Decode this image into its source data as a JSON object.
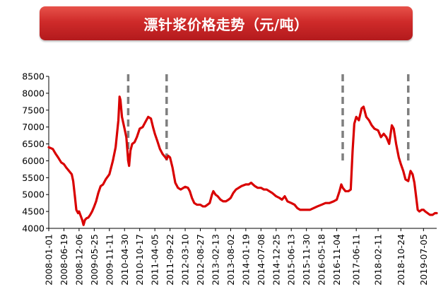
{
  "chart_data": {
    "type": "line",
    "title": "漂针浆价格走势（元/吨）",
    "xlabel": "",
    "ylabel": "",
    "ylim": [
      4000,
      8500
    ],
    "yticks": [
      4000,
      4500,
      5000,
      5500,
      6000,
      6500,
      7000,
      7500,
      8000,
      8500
    ],
    "xlim": [
      "2008-01-01",
      "2019-11-30"
    ],
    "xtick_labels": [
      "2008-01-01",
      "2008-06-19",
      "2008-12-06",
      "2009-05-25",
      "2009-11-11",
      "2010-04-30",
      "2010-10-17",
      "2011-04-05",
      "2011-09-22",
      "2012-03-10",
      "2012-08-27",
      "2013-02-13",
      "2013-08-02",
      "2014-01-19",
      "2014-07-08",
      "2014-12-25",
      "2015-06-13",
      "2015-11-30",
      "2016-05-18",
      "2016-11-04",
      "2017-06-11",
      "2018-02-11",
      "2018-10-24",
      "2019-07-05"
    ],
    "grid": false,
    "legend": "none",
    "line_color": "#d90000",
    "marker_color": "#7f7f7f",
    "vertical_markers": [
      "2010-06-10",
      "2011-08-15",
      "2017-01-10",
      "2019-01-15"
    ],
    "series": [
      {
        "points": [
          [
            "2008-01-01",
            6400
          ],
          [
            "2008-02-15",
            6350
          ],
          [
            "2008-03-20",
            6200
          ],
          [
            "2008-04-15",
            6100
          ],
          [
            "2008-05-20",
            5950
          ],
          [
            "2008-06-19",
            5900
          ],
          [
            "2008-07-15",
            5800
          ],
          [
            "2008-08-15",
            5700
          ],
          [
            "2008-09-15",
            5600
          ],
          [
            "2008-10-01",
            5400
          ],
          [
            "2008-10-20",
            4950
          ],
          [
            "2008-11-05",
            4550
          ],
          [
            "2008-11-25",
            4450
          ],
          [
            "2008-12-06",
            4500
          ],
          [
            "2008-12-20",
            4400
          ],
          [
            "2009-01-10",
            4250
          ],
          [
            "2009-01-25",
            4100
          ],
          [
            "2009-02-10",
            4250
          ],
          [
            "2009-03-01",
            4300
          ],
          [
            "2009-03-20",
            4320
          ],
          [
            "2009-04-10",
            4400
          ],
          [
            "2009-05-01",
            4500
          ],
          [
            "2009-05-25",
            4650
          ],
          [
            "2009-06-15",
            4800
          ],
          [
            "2009-07-10",
            5050
          ],
          [
            "2009-08-05",
            5250
          ],
          [
            "2009-09-01",
            5300
          ],
          [
            "2009-10-01",
            5450
          ],
          [
            "2009-11-11",
            5600
          ],
          [
            "2009-12-20",
            6000
          ],
          [
            "2010-01-20",
            6400
          ],
          [
            "2010-02-20",
            7200
          ],
          [
            "2010-03-05",
            7900
          ],
          [
            "2010-03-15",
            7800
          ],
          [
            "2010-04-01",
            7300
          ],
          [
            "2010-04-30",
            6950
          ],
          [
            "2010-05-20",
            6700
          ],
          [
            "2010-06-10",
            6000
          ],
          [
            "2010-06-20",
            5850
          ],
          [
            "2010-07-05",
            6300
          ],
          [
            "2010-07-25",
            6500
          ],
          [
            "2010-08-20",
            6550
          ],
          [
            "2010-09-15",
            6700
          ],
          [
            "2010-10-17",
            6950
          ],
          [
            "2010-11-20",
            7000
          ],
          [
            "2010-12-20",
            7150
          ],
          [
            "2011-01-20",
            7300
          ],
          [
            "2011-02-20",
            7250
          ],
          [
            "2011-03-15",
            7000
          ],
          [
            "2011-04-05",
            6800
          ],
          [
            "2011-05-01",
            6600
          ],
          [
            "2011-06-01",
            6350
          ],
          [
            "2011-07-01",
            6200
          ],
          [
            "2011-08-01",
            6100
          ],
          [
            "2011-08-15",
            6050
          ],
          [
            "2011-09-01",
            6150
          ],
          [
            "2011-09-22",
            6100
          ],
          [
            "2011-10-20",
            5800
          ],
          [
            "2011-11-20",
            5350
          ],
          [
            "2011-12-20",
            5200
          ],
          [
            "2012-01-20",
            5150
          ],
          [
            "2012-02-20",
            5200
          ],
          [
            "2012-03-10",
            5230
          ],
          [
            "2012-04-10",
            5200
          ],
          [
            "2012-05-01",
            5100
          ],
          [
            "2012-05-25",
            4900
          ],
          [
            "2012-06-20",
            4750
          ],
          [
            "2012-07-20",
            4700
          ],
          [
            "2012-08-27",
            4700
          ],
          [
            "2012-09-25",
            4650
          ],
          [
            "2012-10-20",
            4650
          ],
          [
            "2012-11-15",
            4700
          ],
          [
            "2012-12-10",
            4750
          ],
          [
            "2013-01-05",
            5000
          ],
          [
            "2013-01-20",
            5100
          ],
          [
            "2013-02-13",
            5000
          ],
          [
            "2013-03-10",
            4950
          ],
          [
            "2013-04-10",
            4850
          ],
          [
            "2013-05-10",
            4800
          ],
          [
            "2013-06-10",
            4800
          ],
          [
            "2013-07-10",
            4850
          ],
          [
            "2013-08-02",
            4900
          ],
          [
            "2013-09-01",
            5050
          ],
          [
            "2013-10-01",
            5150
          ],
          [
            "2013-11-01",
            5200
          ],
          [
            "2013-12-01",
            5250
          ],
          [
            "2014-01-19",
            5300
          ],
          [
            "2014-02-20",
            5300
          ],
          [
            "2014-03-20",
            5350
          ],
          [
            "2014-04-10",
            5300
          ],
          [
            "2014-05-01",
            5250
          ],
          [
            "2014-06-01",
            5200
          ],
          [
            "2014-07-08",
            5200
          ],
          [
            "2014-08-10",
            5150
          ],
          [
            "2014-09-10",
            5150
          ],
          [
            "2014-10-10",
            5100
          ],
          [
            "2014-11-10",
            5050
          ],
          [
            "2014-12-25",
            4950
          ],
          [
            "2015-02-01",
            4900
          ],
          [
            "2015-03-01",
            4850
          ],
          [
            "2015-04-01",
            4950
          ],
          [
            "2015-05-01",
            4800
          ],
          [
            "2015-06-13",
            4750
          ],
          [
            "2015-07-20",
            4700
          ],
          [
            "2015-08-20",
            4600
          ],
          [
            "2015-09-20",
            4550
          ],
          [
            "2015-11-01",
            4550
          ],
          [
            "2015-11-30",
            4550
          ],
          [
            "2016-01-10",
            4550
          ],
          [
            "2016-02-20",
            4600
          ],
          [
            "2016-04-01",
            4650
          ],
          [
            "2016-05-18",
            4700
          ],
          [
            "2016-07-01",
            4750
          ],
          [
            "2016-08-15",
            4750
          ],
          [
            "2016-10-01",
            4800
          ],
          [
            "2016-11-04",
            4850
          ],
          [
            "2016-12-05",
            5100
          ],
          [
            "2016-12-25",
            5300
          ],
          [
            "2017-01-10",
            5200
          ],
          [
            "2017-02-10",
            5100
          ],
          [
            "2017-03-15",
            5100
          ],
          [
            "2017-04-10",
            5150
          ],
          [
            "2017-05-01",
            6300
          ],
          [
            "2017-05-20",
            7100
          ],
          [
            "2017-06-11",
            7300
          ],
          [
            "2017-07-10",
            7200
          ],
          [
            "2017-08-10",
            7550
          ],
          [
            "2017-09-01",
            7600
          ],
          [
            "2017-10-01",
            7300
          ],
          [
            "2017-11-01",
            7200
          ],
          [
            "2017-12-01",
            7050
          ],
          [
            "2018-01-01",
            6950
          ],
          [
            "2018-02-11",
            6900
          ],
          [
            "2018-03-15",
            6700
          ],
          [
            "2018-04-15",
            6800
          ],
          [
            "2018-05-15",
            6700
          ],
          [
            "2018-06-15",
            6500
          ],
          [
            "2018-07-15",
            7050
          ],
          [
            "2018-08-05",
            6950
          ],
          [
            "2018-09-01",
            6500
          ],
          [
            "2018-10-01",
            6100
          ],
          [
            "2018-10-24",
            5900
          ],
          [
            "2018-11-20",
            5700
          ],
          [
            "2018-12-15",
            5450
          ],
          [
            "2019-01-15",
            5400
          ],
          [
            "2019-02-10",
            5700
          ],
          [
            "2019-03-05",
            5600
          ],
          [
            "2019-03-25",
            5350
          ],
          [
            "2019-04-15",
            4900
          ],
          [
            "2019-05-01",
            4550
          ],
          [
            "2019-05-20",
            4500
          ],
          [
            "2019-06-15",
            4550
          ],
          [
            "2019-07-05",
            4550
          ],
          [
            "2019-07-25",
            4500
          ],
          [
            "2019-08-20",
            4450
          ],
          [
            "2019-09-15",
            4400
          ],
          [
            "2019-10-15",
            4400
          ],
          [
            "2019-11-10",
            4450
          ],
          [
            "2019-11-30",
            4450
          ]
        ]
      }
    ]
  }
}
